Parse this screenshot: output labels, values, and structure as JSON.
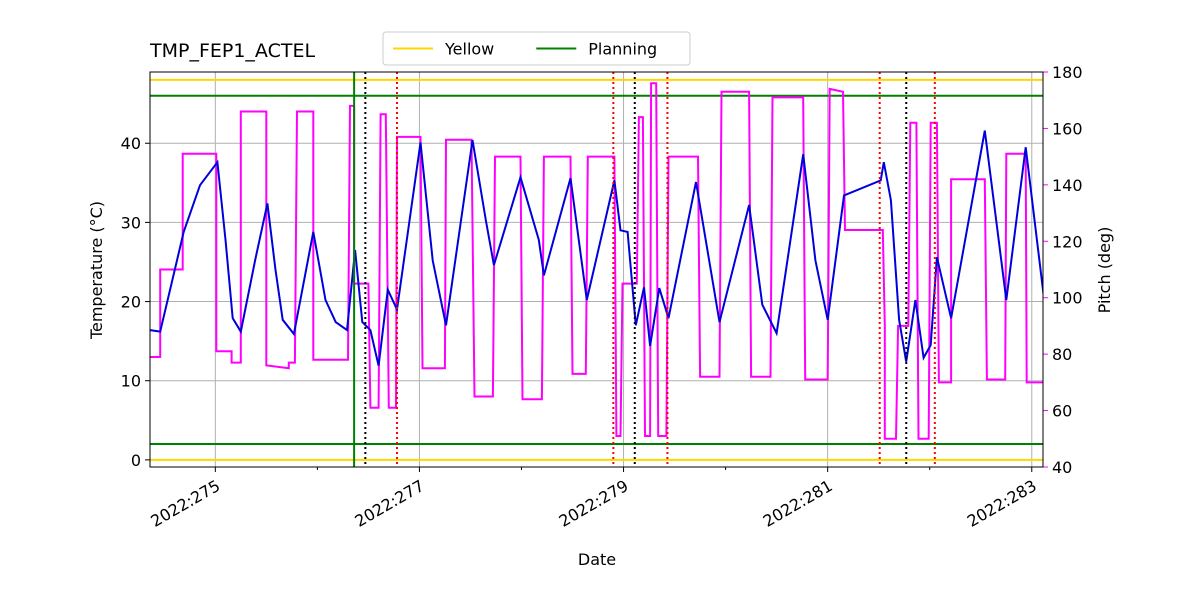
{
  "chart_data": {
    "type": "line",
    "title": "TMP_FEP1_ACTEL",
    "xlabel": "Date",
    "ylabel": "Temperature (°C)",
    "y2label": "Pitch (deg)",
    "y2color": "#ff00ff",
    "xlim": [
      274.36,
      283.11
    ],
    "ylim": [
      -0.9,
      49
    ],
    "y2lim": [
      40,
      180
    ],
    "xticks": [
      {
        "value": 275,
        "label": "2022:275"
      },
      {
        "value": 277,
        "label": "2022:277"
      },
      {
        "value": 279,
        "label": "2022:279"
      },
      {
        "value": 281,
        "label": "2022:281"
      },
      {
        "value": 283,
        "label": "2022:283"
      }
    ],
    "xminorticks": [
      276,
      278,
      280,
      282
    ],
    "yticks": [
      0,
      10,
      20,
      30,
      40
    ],
    "y2ticks": [
      40,
      60,
      80,
      100,
      120,
      140,
      160,
      180
    ],
    "grid": true,
    "legend": "upper center",
    "hlines": [
      {
        "name": "Yellow",
        "color": "#ffd700",
        "values": [
          48,
          0
        ]
      },
      {
        "name": "Planning",
        "color": "#008000",
        "values": [
          46,
          2
        ]
      }
    ],
    "vlines": [
      {
        "color": "#008000",
        "style": "solid",
        "x": [
          276.36
        ]
      },
      {
        "color": "#000000",
        "style": "dotted",
        "x": [
          276.47,
          279.11,
          281.77
        ]
      },
      {
        "color": "#ff0000",
        "style": "dotted",
        "x": [
          276.78,
          278.9,
          279.43,
          281.51,
          282.05
        ]
      }
    ],
    "series": [
      {
        "color": "#ff00ff",
        "axis": "y2",
        "x": [
          274.36,
          274.46,
          274.46,
          274.68,
          274.68,
          275.01,
          275.01,
          275.16,
          275.16,
          275.25,
          275.25,
          275.5,
          275.5,
          275.72,
          275.72,
          275.78,
          275.8,
          275.96,
          275.96,
          276.3,
          276.32,
          276.36,
          276.36,
          276.5,
          276.52,
          276.6,
          276.62,
          276.67,
          276.7,
          276.77,
          276.78,
          277.01,
          277.03,
          277.09,
          277.25,
          277.26,
          277.51,
          277.54,
          277.72,
          277.74,
          277.99,
          278.01,
          278.2,
          278.22,
          278.48,
          278.5,
          278.63,
          278.65,
          278.91,
          278.93,
          278.97,
          278.99,
          279.13,
          279.15,
          279.19,
          279.21,
          279.26,
          279.27,
          279.32,
          279.34,
          279.42,
          279.44,
          279.73,
          279.75,
          279.94,
          279.96,
          280.23,
          280.25,
          280.44,
          280.46,
          280.76,
          280.78,
          281.0,
          281.02,
          281.15,
          281.17,
          281.54,
          281.56,
          281.56,
          281.67,
          281.69,
          281.79,
          281.81,
          281.87,
          281.89,
          281.99,
          282.01,
          282.07,
          282.09,
          282.21,
          282.21,
          282.54,
          282.56,
          282.74,
          282.75,
          282.94,
          282.95,
          283.12
        ],
        "values": [
          79,
          79,
          110,
          110,
          151,
          151,
          81,
          81,
          77,
          77,
          166,
          166,
          76,
          75,
          77,
          77,
          166,
          166,
          78,
          78,
          168,
          168,
          105,
          105,
          61,
          61,
          165,
          165,
          61,
          61,
          157,
          157,
          75,
          75,
          75,
          156,
          156,
          65,
          65,
          150,
          150,
          64,
          64,
          150,
          150,
          73,
          73,
          150,
          150,
          51,
          51,
          105,
          105,
          164,
          164,
          51,
          51,
          176,
          176,
          51,
          51,
          150,
          150,
          72,
          72,
          173,
          173,
          72,
          72,
          171,
          171,
          71,
          71,
          174,
          173,
          124,
          124,
          90,
          50,
          50,
          90,
          90,
          162,
          162,
          50,
          50,
          162,
          162,
          70,
          70,
          142,
          142,
          71,
          71,
          151,
          151,
          70,
          70
        ]
      },
      {
        "color": "#0000dd",
        "axis": "y",
        "x": [
          274.36,
          274.46,
          274.69,
          274.85,
          275.02,
          275.1,
          275.17,
          275.25,
          275.39,
          275.51,
          275.59,
          275.66,
          275.77,
          275.96,
          276.08,
          276.18,
          276.29,
          276.37,
          276.44,
          276.52,
          276.6,
          276.69,
          276.78,
          277.01,
          277.13,
          277.26,
          277.52,
          277.65,
          277.73,
          277.99,
          278.17,
          278.22,
          278.48,
          278.64,
          278.91,
          278.97,
          279.04,
          279.12,
          279.2,
          279.26,
          279.35,
          279.44,
          279.71,
          279.94,
          280.23,
          280.36,
          280.5,
          280.76,
          280.88,
          281.0,
          281.16,
          281.52,
          281.55,
          281.62,
          281.7,
          281.77,
          281.86,
          281.94,
          282.01,
          282.07,
          282.21,
          282.54,
          282.75,
          282.94,
          283.12
        ],
        "values": [
          16.4,
          16.2,
          28.8,
          34.7,
          37.6,
          27.8,
          17.9,
          16.2,
          25.2,
          32.4,
          24.0,
          17.7,
          15.9,
          28.8,
          20.2,
          17.4,
          16.4,
          26.5,
          17.4,
          16.4,
          11.9,
          21.5,
          19.0,
          40.1,
          25.2,
          17.0,
          40.4,
          30.3,
          24.6,
          35.7,
          27.8,
          23.3,
          35.6,
          20.2,
          35.3,
          29.0,
          28.8,
          17.0,
          21.8,
          14.4,
          21.7,
          17.9,
          35.1,
          17.4,
          32.2,
          19.6,
          16.0,
          38.6,
          25.2,
          17.7,
          33.4,
          35.3,
          37.6,
          32.8,
          17.7,
          12.4,
          20.2,
          12.9,
          14.5,
          25.6,
          17.9,
          41.6,
          20.2,
          39.5,
          20.4
        ]
      }
    ]
  }
}
